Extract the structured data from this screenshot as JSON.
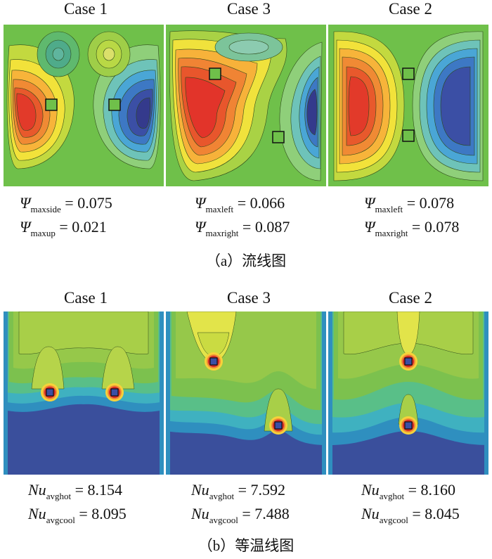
{
  "streamlines": {
    "titles": [
      "Case 1",
      "Case 3",
      "Case 2"
    ],
    "values": [
      [
        {
          "sym": "Ψ",
          "sub": "maxside",
          "val": "= 0.075"
        },
        {
          "sym": "Ψ",
          "sub": "maxup",
          "val": "= 0.021"
        }
      ],
      [
        {
          "sym": "Ψ",
          "sub": "maxleft",
          "val": "= 0.066"
        },
        {
          "sym": "Ψ",
          "sub": "maxright",
          "val": "= 0.087"
        }
      ],
      [
        {
          "sym": "Ψ",
          "sub": "maxleft",
          "val": "= 0.078"
        },
        {
          "sym": "Ψ",
          "sub": "maxright",
          "val": "= 0.078"
        }
      ]
    ],
    "caption": "（a）流线图"
  },
  "isotherms": {
    "titles": [
      "Case 1",
      "Case 3",
      "Case 2"
    ],
    "values": [
      [
        {
          "sym": "Nu",
          "sub": "avghot",
          "val": "= 8.154"
        },
        {
          "sym": "Nu",
          "sub": "avgcool",
          "val": "= 8.095"
        }
      ],
      [
        {
          "sym": "Nu",
          "sub": "avghot",
          "val": "= 7.592"
        },
        {
          "sym": "Nu",
          "sub": "avgcool",
          "val": "= 7.488"
        }
      ],
      [
        {
          "sym": "Nu",
          "sub": "avghot",
          "val": "= 8.160"
        },
        {
          "sym": "Nu",
          "sub": "avgcool",
          "val": "= 8.045"
        }
      ]
    ],
    "caption": "（b）等温线图"
  }
}
